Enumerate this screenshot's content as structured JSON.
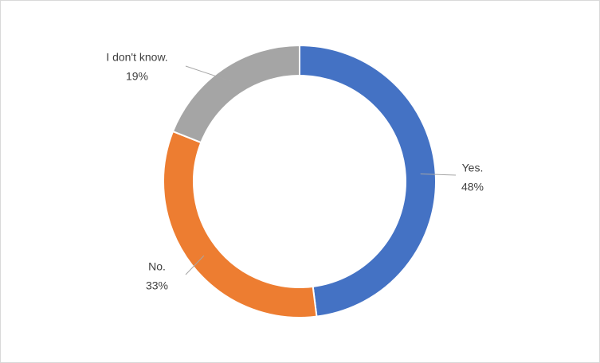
{
  "chart_data": {
    "type": "donut",
    "categories": [
      "Yes.",
      "No.",
      "I don't know."
    ],
    "values": [
      48,
      33,
      19
    ],
    "value_labels": [
      "48%",
      "33%",
      "19%"
    ],
    "colors": [
      "#4472c4",
      "#ed7d31",
      "#a5a5a5"
    ]
  }
}
